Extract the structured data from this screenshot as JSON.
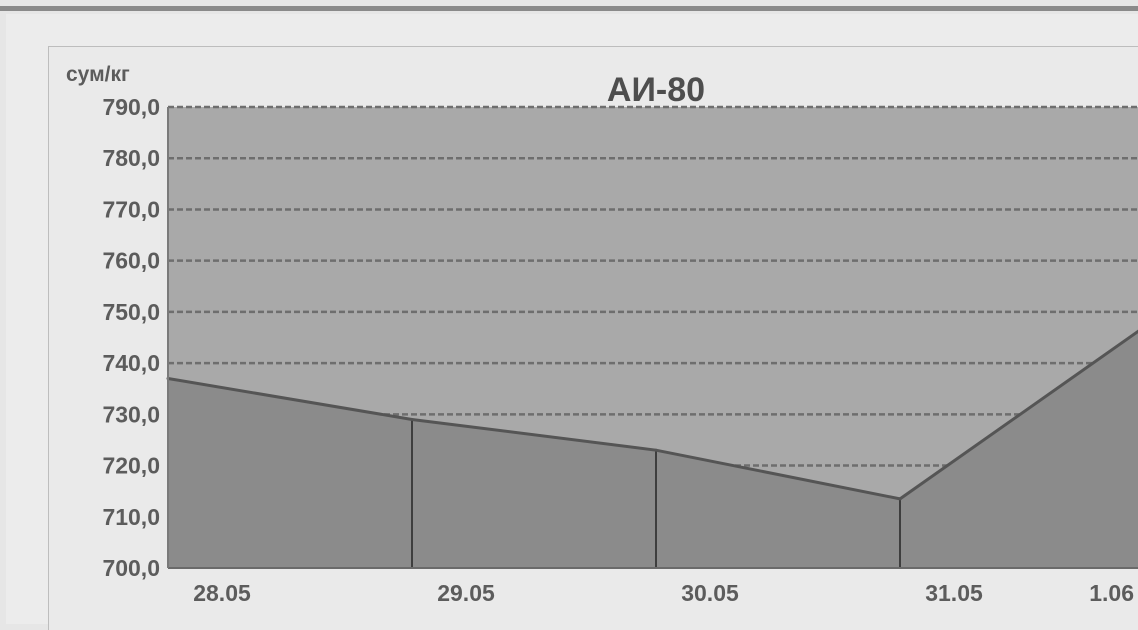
{
  "chart_data": {
    "type": "area",
    "title": "АИ-80",
    "ylabel": "сум/кг",
    "xlabel": "",
    "categories": [
      "28.05",
      "29.05",
      "30.05",
      "31.05",
      "1.06"
    ],
    "values": [
      737.0,
      729.0,
      723.0,
      713.5,
      747.0
    ],
    "ylim": [
      700.0,
      790.0
    ],
    "yticks": [
      "700,0",
      "710,0",
      "720,0",
      "730,0",
      "740,0",
      "750,0",
      "760,0",
      "770,0",
      "780,0",
      "790,0"
    ],
    "grid": true,
    "colors": {
      "plot_background": "#a9a9a9",
      "area_fill": "#8b8b8b",
      "area_edge": "#555555",
      "gridline": "#6e6e6e",
      "text": "#5c5c5c"
    }
  }
}
